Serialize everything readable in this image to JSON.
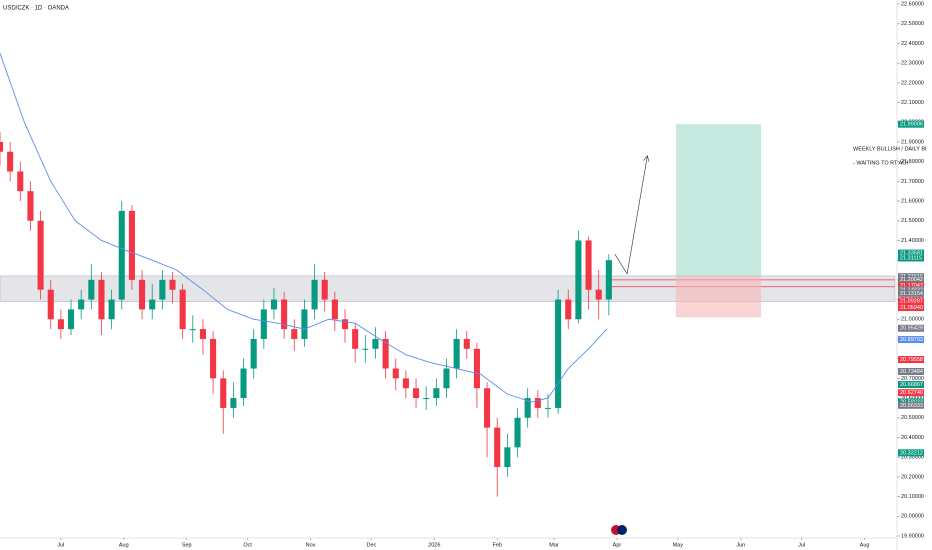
{
  "chart_data": {
    "type": "candlestick",
    "title": "USD/CZK · 1D · OANDA",
    "annotations": [
      "WEEKLY BULLISH / DAILY BI",
      "- WAITING TO RT AOI"
    ],
    "xlim": [
      0,
      441
    ],
    "xticks": [
      {
        "value": 30,
        "label": "Jul"
      },
      {
        "value": 61,
        "label": "Aug"
      },
      {
        "value": 92,
        "label": "Sep"
      },
      {
        "value": 122,
        "label": "Oct"
      },
      {
        "value": 153,
        "label": "Nov"
      },
      {
        "value": 183,
        "label": "Dec"
      },
      {
        "value": 214,
        "label": "2026"
      },
      {
        "value": 245,
        "label": "Feb"
      },
      {
        "value": 273,
        "label": "Mar"
      },
      {
        "value": 304,
        "label": "Apr"
      },
      {
        "value": 334,
        "label": "May"
      },
      {
        "value": 365,
        "label": "Jun"
      },
      {
        "value": 395,
        "label": "Jul"
      },
      {
        "value": 426,
        "label": "Aug"
      }
    ],
    "ylim": [
      19.9,
      22.6
    ],
    "yticks": [
      {
        "value": 19.9,
        "label": "19.90000"
      },
      {
        "value": 20.0,
        "label": "20.00000"
      },
      {
        "value": 20.1,
        "label": "20.10000"
      },
      {
        "value": 20.2,
        "label": "20.20000"
      },
      {
        "value": 20.3,
        "label": "20.30000"
      },
      {
        "value": 20.4,
        "label": "20.40000"
      },
      {
        "value": 20.5,
        "label": "20.50000"
      },
      {
        "value": 20.6,
        "label": "20.60000"
      },
      {
        "value": 20.7,
        "label": "20.70000"
      },
      {
        "value": 20.8,
        "label": "20.80000"
      },
      {
        "value": 20.9,
        "label": "20.90000"
      },
      {
        "value": 21.0,
        "label": "21.00000"
      },
      {
        "value": 21.1,
        "label": "21.10000"
      },
      {
        "value": 21.2,
        "label": "21.20000"
      },
      {
        "value": 21.3,
        "label": "21.30000"
      },
      {
        "value": 21.4,
        "label": "21.40000"
      },
      {
        "value": 21.5,
        "label": "21.50000"
      },
      {
        "value": 21.6,
        "label": "21.60000"
      },
      {
        "value": 21.7,
        "label": "21.70000"
      },
      {
        "value": 21.8,
        "label": "21.80000"
      },
      {
        "value": 21.9,
        "label": "21.90000"
      },
      {
        "value": 22.0,
        "label": "22.00000"
      },
      {
        "value": 22.1,
        "label": "22.10000"
      },
      {
        "value": 22.2,
        "label": "22.20000"
      },
      {
        "value": 22.3,
        "label": "22.30000"
      },
      {
        "value": 22.4,
        "label": "22.40000"
      },
      {
        "value": 22.5,
        "label": "22.50000"
      },
      {
        "value": 22.6,
        "label": "22.60000"
      }
    ],
    "grid": false,
    "up_color": "#089981",
    "down_color": "#f23645",
    "x": [
      0,
      5,
      10,
      15,
      20,
      25,
      30,
      35,
      40,
      45,
      50,
      55,
      60,
      65,
      70,
      75,
      80,
      85,
      90,
      95,
      100,
      105,
      110,
      115,
      120,
      125,
      130,
      135,
      140,
      145,
      150,
      155,
      160,
      165,
      170,
      175,
      180,
      185,
      190,
      195,
      200,
      205,
      210,
      215,
      220,
      225,
      230,
      235,
      240,
      245,
      250,
      255,
      260,
      265,
      270,
      275,
      280,
      285,
      290,
      295,
      300
    ],
    "open": [
      21.9,
      21.85,
      21.75,
      21.65,
      21.5,
      21.15,
      21.0,
      20.95,
      21.05,
      21.1,
      21.2,
      21.0,
      21.1,
      21.55,
      21.2,
      21.05,
      21.1,
      21.2,
      21.15,
      20.95,
      20.95,
      20.9,
      20.7,
      20.55,
      20.6,
      20.75,
      20.9,
      21.05,
      21.1,
      20.95,
      20.9,
      21.05,
      21.2,
      21.1,
      21.0,
      20.95,
      20.85,
      20.85,
      20.9,
      20.75,
      20.7,
      20.65,
      20.6,
      20.6,
      20.65,
      20.75,
      20.9,
      20.85,
      20.65,
      20.45,
      20.25,
      20.35,
      20.5,
      20.6,
      20.55,
      20.55,
      21.1,
      21.0,
      21.4,
      21.15,
      21.1
    ],
    "high": [
      21.95,
      21.9,
      21.8,
      21.7,
      21.55,
      21.2,
      21.05,
      21.1,
      21.15,
      21.28,
      21.24,
      21.15,
      21.6,
      21.58,
      21.25,
      21.18,
      21.25,
      21.24,
      21.18,
      21.02,
      21.0,
      20.94,
      20.74,
      20.68,
      20.8,
      20.95,
      21.1,
      21.16,
      21.14,
      21.0,
      21.1,
      21.28,
      21.24,
      21.14,
      21.05,
      20.98,
      20.92,
      20.96,
      20.94,
      20.8,
      20.74,
      20.7,
      20.66,
      20.7,
      20.8,
      20.95,
      20.94,
      20.88,
      20.68,
      20.5,
      20.42,
      20.55,
      20.65,
      20.64,
      20.62,
      21.15,
      21.15,
      21.45,
      21.42,
      21.25,
      21.33
    ],
    "low": [
      21.78,
      21.7,
      21.6,
      21.45,
      21.1,
      20.95,
      20.9,
      20.92,
      21.0,
      21.05,
      20.92,
      20.95,
      21.05,
      21.15,
      21.0,
      21.0,
      21.05,
      21.08,
      20.9,
      20.88,
      20.82,
      20.62,
      20.42,
      20.5,
      20.56,
      20.7,
      20.85,
      21.0,
      20.9,
      20.84,
      20.86,
      21.0,
      21.04,
      20.94,
      20.88,
      20.78,
      20.78,
      20.8,
      20.7,
      20.64,
      20.6,
      20.55,
      20.54,
      20.56,
      20.6,
      20.7,
      20.8,
      20.55,
      20.3,
      20.1,
      20.2,
      20.3,
      20.45,
      20.5,
      20.5,
      20.52,
      20.95,
      20.98,
      21.05,
      21.0,
      21.02
    ],
    "close": [
      21.85,
      21.75,
      21.65,
      21.5,
      21.15,
      21.0,
      20.95,
      21.05,
      21.1,
      21.2,
      21.0,
      21.1,
      21.55,
      21.2,
      21.05,
      21.1,
      21.2,
      21.15,
      20.95,
      20.95,
      20.9,
      20.7,
      20.55,
      20.6,
      20.75,
      20.9,
      21.05,
      21.1,
      20.95,
      20.9,
      21.05,
      21.2,
      21.1,
      21.0,
      20.95,
      20.85,
      20.85,
      20.9,
      20.75,
      20.7,
      20.65,
      20.6,
      20.6,
      20.65,
      20.75,
      20.9,
      20.85,
      20.65,
      20.45,
      20.25,
      20.35,
      20.5,
      20.6,
      20.55,
      20.55,
      21.1,
      21.0,
      21.4,
      21.15,
      21.1,
      21.3
    ],
    "moving_average": {
      "color": "#5b8def",
      "x": [
        0,
        12,
        25,
        37,
        50,
        62,
        75,
        87,
        100,
        112,
        125,
        137,
        150,
        162,
        175,
        187,
        200,
        212,
        225,
        237,
        250,
        262,
        270,
        280,
        290,
        299
      ],
      "values": [
        22.35,
        22.0,
        21.7,
        21.5,
        21.4,
        21.35,
        21.3,
        21.25,
        21.15,
        21.05,
        21.0,
        20.98,
        20.95,
        21.0,
        20.98,
        20.9,
        20.82,
        20.78,
        20.75,
        20.72,
        20.62,
        20.58,
        20.6,
        20.75,
        20.85,
        20.95
      ]
    },
    "zone": {
      "low": 21.09,
      "high": 21.22,
      "color": "#b2b5be"
    },
    "levels": {
      "values": [
        21.2,
        21.165
      ],
      "color": "#f23645"
    },
    "position": {
      "x": [
        333,
        375
      ],
      "target": 21.99,
      "entry": 21.22,
      "stop": 21.01,
      "profit_color": "#8fd6c1",
      "loss_color": "#f7b6b9"
    },
    "arrow": {
      "x": [
        303,
        309,
        319
      ],
      "values": [
        21.33,
        21.23,
        21.83
      ]
    },
    "price_tags": [
      {
        "value": 21.99006,
        "label": "21.99006",
        "color": "#089981"
      },
      {
        "value": 21.33581,
        "label": "21.33581",
        "color": "#089981"
      },
      {
        "value": 21.31115,
        "label": "21.31115",
        "color": "#089981"
      },
      {
        "value": 21.21616,
        "label": "21.21616",
        "color": "#787b86"
      },
      {
        "value": 21.20042,
        "label": "21.20042",
        "color": "#787b86"
      },
      {
        "value": 21.17047,
        "label": "21.17047",
        "color": "#f23645"
      },
      {
        "value": 21.14932,
        "label": "21.14932",
        "color": "#787b86"
      },
      {
        "value": 21.13154,
        "label": "21.13154",
        "color": "#787b86"
      },
      {
        "value": 21.09287,
        "label": "21.09287",
        "color": "#f23645"
      },
      {
        "value": 21.0594,
        "label": "21.05940",
        "color": "#f23645"
      },
      {
        "value": 20.95429,
        "label": "20.95429",
        "color": "#787b86"
      },
      {
        "value": 20.89703,
        "label": "20.89703",
        "color": "#5b8def"
      },
      {
        "value": 20.79558,
        "label": "20.79558",
        "color": "#f23645"
      },
      {
        "value": 20.73484,
        "label": "20.73484",
        "color": "#787b86"
      },
      {
        "value": 20.66867,
        "label": "20.66867",
        "color": "#089981"
      },
      {
        "value": 20.6274,
        "label": "20.62740",
        "color": "#f23645"
      },
      {
        "value": 20.58033,
        "label": "20.58033",
        "color": "#089981"
      },
      {
        "value": 20.56333,
        "label": "20.56333",
        "color": "#787b86"
      },
      {
        "value": 20.32212,
        "label": "20.32212",
        "color": "#089981"
      }
    ]
  }
}
